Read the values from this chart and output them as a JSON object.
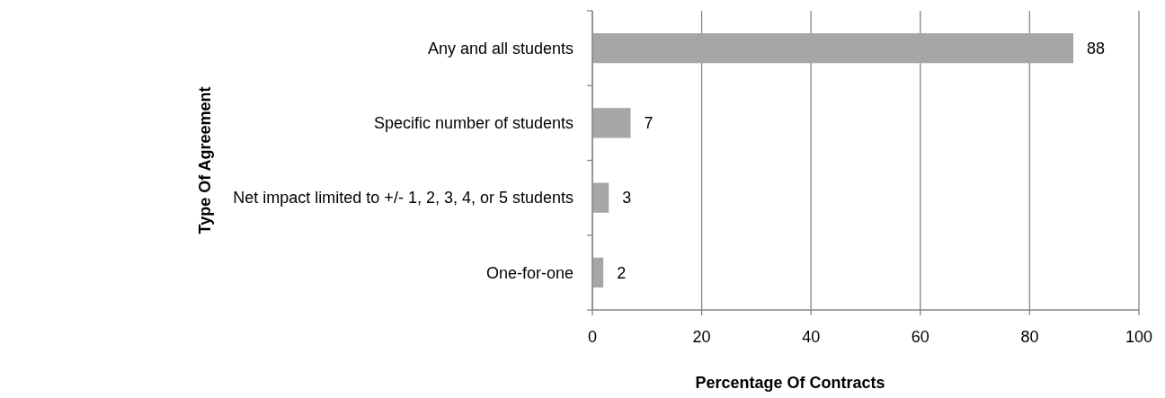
{
  "chart_data": {
    "type": "bar",
    "orientation": "horizontal",
    "categories": [
      "Any and all students",
      "Specific number of students",
      "Net impact limited to +/- 1, 2, 3, 4, or 5 students",
      "One-for-one"
    ],
    "values": [
      88,
      7,
      3,
      2
    ],
    "color": "#a6a6a6",
    "xlim": [
      0,
      100
    ],
    "xticks": [
      0,
      20,
      40,
      60,
      80,
      100
    ],
    "xlabel": "Percentage Of Contracts",
    "ylabel": "Type Of Agreement",
    "grid": "x",
    "data_labels": true
  }
}
